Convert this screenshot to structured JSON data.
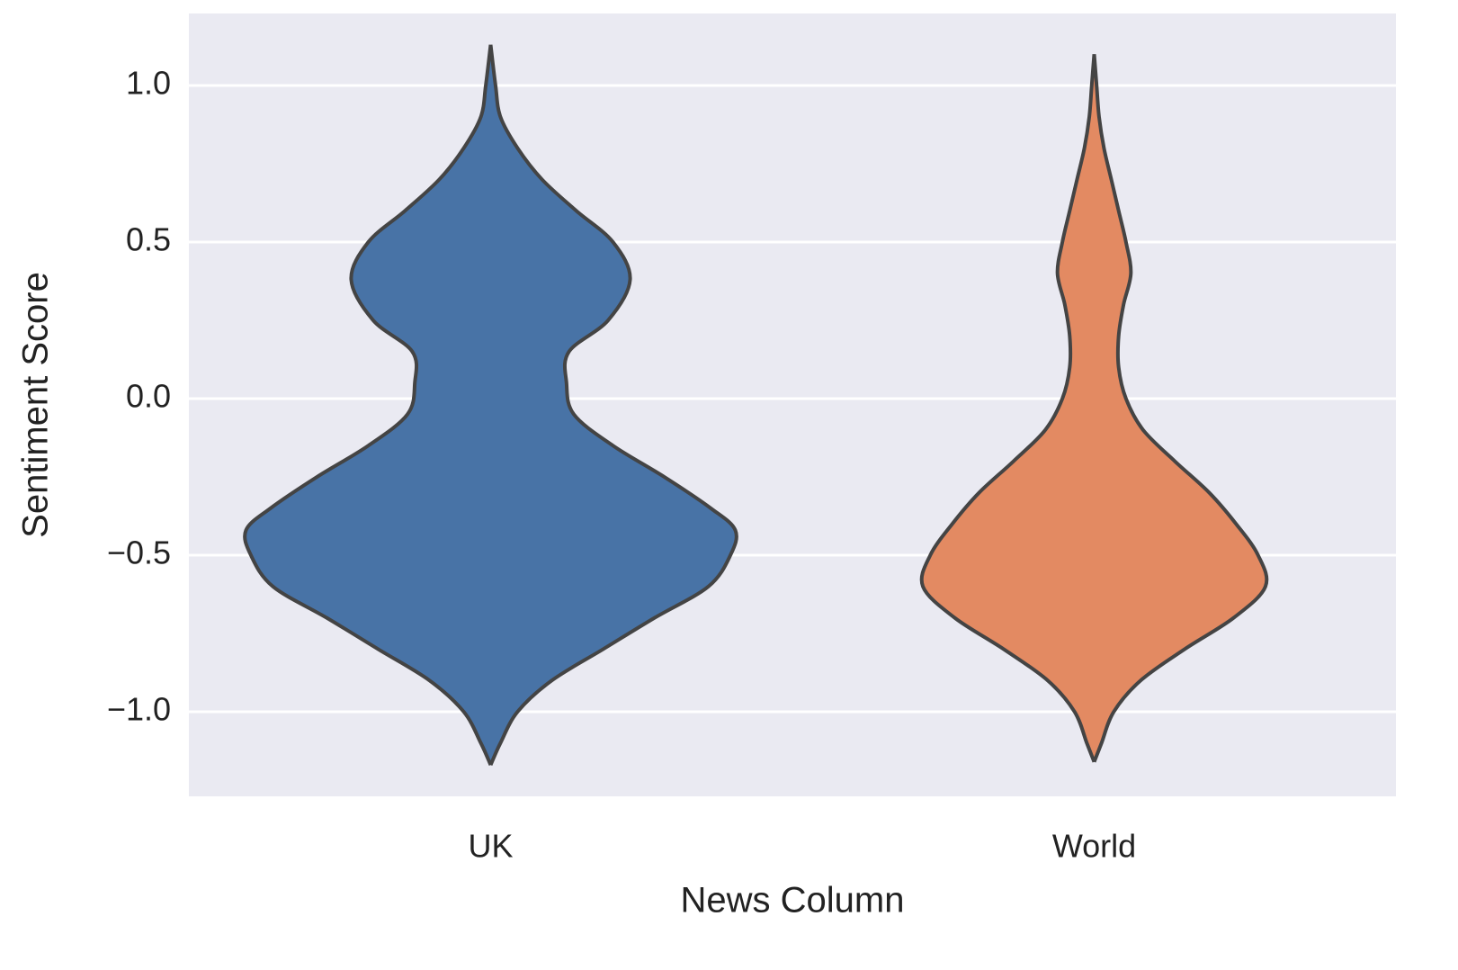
{
  "chart_data": {
    "type": "violin",
    "x_label": "News Column",
    "y_label": "Sentiment Score",
    "categories": [
      "UK",
      "World"
    ],
    "series": [
      {
        "name": "UK",
        "color": "#4873a6",
        "y": [
          1.13,
          1.0,
          0.9,
          0.8,
          0.7,
          0.6,
          0.5,
          0.38,
          0.25,
          0.15,
          0.05,
          -0.05,
          -0.15,
          -0.25,
          -0.35,
          -0.42,
          -0.5,
          -0.6,
          -0.7,
          -0.8,
          -0.9,
          -1.0,
          -1.1,
          -1.17
        ],
        "density": [
          0,
          0.02,
          0.04,
          0.11,
          0.21,
          0.35,
          0.5,
          0.57,
          0.48,
          0.32,
          0.31,
          0.34,
          0.5,
          0.71,
          0.9,
          1,
          0.98,
          0.89,
          0.67,
          0.46,
          0.25,
          0.11,
          0.04,
          0
        ]
      },
      {
        "name": "World",
        "color": "#e38a62",
        "y": [
          1.1,
          1.0,
          0.9,
          0.8,
          0.7,
          0.6,
          0.5,
          0.4,
          0.3,
          0.2,
          0.1,
          0.0,
          -0.1,
          -0.2,
          -0.3,
          -0.4,
          -0.5,
          -0.6,
          -0.7,
          -0.8,
          -0.9,
          -1.0,
          -1.1,
          -1.16
        ],
        "density": [
          0,
          0.01,
          0.02,
          0.04,
          0.07,
          0.1,
          0.13,
          0.15,
          0.12,
          0.1,
          0.1,
          0.13,
          0.2,
          0.33,
          0.47,
          0.58,
          0.67,
          0.7,
          0.57,
          0.37,
          0.19,
          0.08,
          0.03,
          0
        ]
      }
    ],
    "ylim": [
      -1.27,
      1.23
    ],
    "yticks": [
      {
        "value": -1.0,
        "label": "−1.0"
      },
      {
        "value": -0.5,
        "label": "−0.5"
      },
      {
        "value": 0.0,
        "label": "0.0"
      },
      0.5,
      {
        "value": 1.0,
        "label": "1.0"
      }
    ],
    "grid": true,
    "background": "#eaeaf2",
    "outline_color": "#444444"
  }
}
